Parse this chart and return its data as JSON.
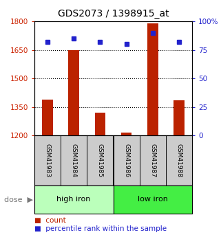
{
  "title": "GDS2073 / 1398915_at",
  "samples": [
    "GSM41983",
    "GSM41984",
    "GSM41985",
    "GSM41986",
    "GSM41987",
    "GSM41988"
  ],
  "counts": [
    1390,
    1650,
    1320,
    1215,
    1790,
    1385
  ],
  "percentiles": [
    82,
    85,
    82,
    80,
    90,
    82
  ],
  "groups": [
    "high iron",
    "high iron",
    "high iron",
    "low iron",
    "low iron",
    "low iron"
  ],
  "group_colors": {
    "high iron": "#bbffbb",
    "low iron": "#44ee44"
  },
  "bar_color": "#bb2200",
  "dot_color": "#2222cc",
  "ymin": 1200,
  "ymax": 1800,
  "yticks": [
    1200,
    1350,
    1500,
    1650,
    1800
  ],
  "right_yticks": [
    0,
    25,
    50,
    75,
    100
  ],
  "right_ylabels": [
    "0",
    "25",
    "50",
    "75",
    "100%"
  ],
  "background_color": "#ffffff",
  "plot_bg": "#ffffff",
  "label_color_left": "#cc2200",
  "label_color_right": "#2222cc",
  "legend_count": "count",
  "legend_pct": "percentile rank within the sample",
  "sample_bg": "#cccccc"
}
